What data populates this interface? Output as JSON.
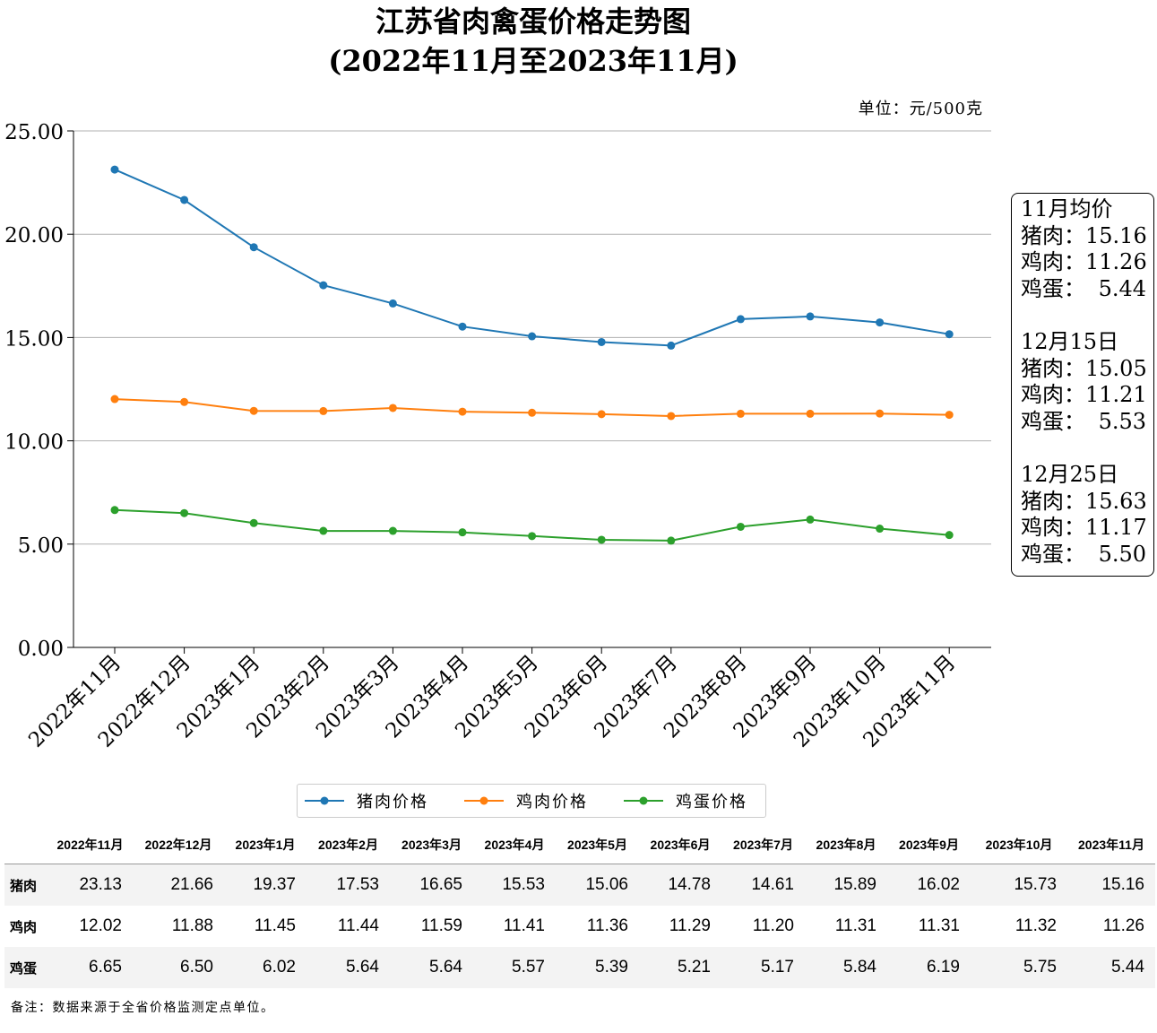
{
  "title_line1": "江苏省肉禽蛋价格走势图",
  "title_line2": "(2022年11月至2023年11月)",
  "unit": "单位：元/500克",
  "note": "备注：数据来源于全省价格监测定点单位。",
  "colors": {
    "pork": "#1f77b4",
    "chicken": "#ff7f0e",
    "egg": "#2ca02c",
    "grid": "#b0b0b0"
  },
  "info_box": [
    {
      "heading": "11月均价",
      "rows": [
        {
          "label": "猪肉：",
          "value": "15.16"
        },
        {
          "label": "鸡肉：",
          "value": "11.26"
        },
        {
          "label": "鸡蛋：",
          "value": "5.44"
        }
      ]
    },
    {
      "heading": "12月15日",
      "rows": [
        {
          "label": "猪肉：",
          "value": "15.05"
        },
        {
          "label": "鸡肉：",
          "value": "11.21"
        },
        {
          "label": "鸡蛋：",
          "value": "5.53"
        }
      ]
    },
    {
      "heading": "12月25日",
      "rows": [
        {
          "label": "猪肉：",
          "value": "15.63"
        },
        {
          "label": "鸡肉：",
          "value": "11.17"
        },
        {
          "label": "鸡蛋：",
          "value": "5.50"
        }
      ]
    }
  ],
  "chart_data": {
    "type": "line",
    "title": "江苏省肉禽蛋价格走势图 (2022年11月至2023年11月)",
    "ylabel": "",
    "xlabel": "",
    "ylim": [
      0,
      25
    ],
    "yticks": [
      "0.00",
      "5.00",
      "10.00",
      "15.00",
      "20.00",
      "25.00"
    ],
    "grid": "horizontal",
    "legend_position": "bottom",
    "categories": [
      "2022年11月",
      "2022年12月",
      "2023年1月",
      "2023年2月",
      "2023年3月",
      "2023年4月",
      "2023年5月",
      "2023年6月",
      "2023年7月",
      "2023年8月",
      "2023年9月",
      "2023年10月",
      "2023年11月"
    ],
    "series": [
      {
        "name": "猪肉价格",
        "key": "pork",
        "values": [
          23.13,
          21.66,
          19.37,
          17.53,
          16.65,
          15.53,
          15.06,
          14.78,
          14.61,
          15.89,
          16.02,
          15.73,
          15.16
        ]
      },
      {
        "name": "鸡肉价格",
        "key": "chicken",
        "values": [
          12.02,
          11.88,
          11.45,
          11.44,
          11.59,
          11.41,
          11.36,
          11.29,
          11.2,
          11.31,
          11.31,
          11.32,
          11.26
        ]
      },
      {
        "name": "鸡蛋价格",
        "key": "egg",
        "values": [
          6.65,
          6.5,
          6.02,
          5.64,
          5.64,
          5.57,
          5.39,
          5.21,
          5.17,
          5.84,
          6.19,
          5.75,
          5.44
        ]
      }
    ]
  },
  "table": {
    "row_labels": [
      "猪肉",
      "鸡肉",
      "鸡蛋"
    ],
    "rows": [
      [
        "23.13",
        "21.66",
        "19.37",
        "17.53",
        "16.65",
        "15.53",
        "15.06",
        "14.78",
        "14.61",
        "15.89",
        "16.02",
        "15.73",
        "15.16"
      ],
      [
        "12.02",
        "11.88",
        "11.45",
        "11.44",
        "11.59",
        "11.41",
        "11.36",
        "11.29",
        "11.20",
        "11.31",
        "11.31",
        "11.32",
        "11.26"
      ],
      [
        "6.65",
        "6.50",
        "6.02",
        "5.64",
        "5.64",
        "5.57",
        "5.39",
        "5.21",
        "5.17",
        "5.84",
        "6.19",
        "5.75",
        "5.44"
      ]
    ]
  }
}
